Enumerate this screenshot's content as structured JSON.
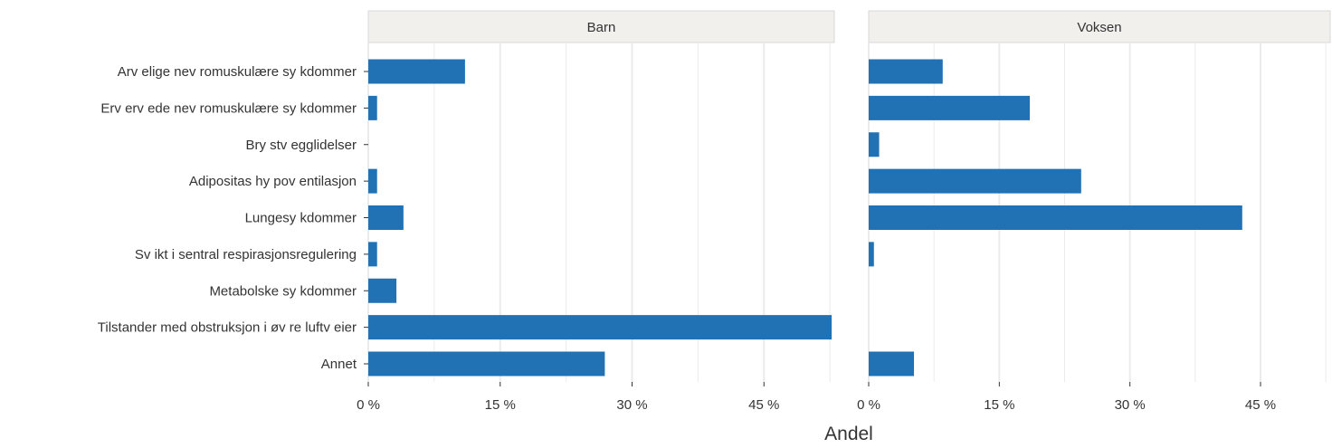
{
  "chart_data": {
    "type": "bar",
    "orientation": "horizontal",
    "facets": [
      "Barn",
      "Voksen"
    ],
    "categories": [
      "Arv elige nev romuskulære sy kdommer",
      "Erv erv ede nev romuskulære sy kdommer",
      "Bry stv egglidelser",
      "Adipositas hy pov entilasjon",
      "Lungesy kdommer",
      "Sv ikt i sentral respirasjonsregulering",
      "Metabolske sy kdommer",
      "Tilstander med obstruksjon i øv re luftv eier",
      "Annet"
    ],
    "series": [
      {
        "values": [
          11.0,
          1.0,
          0.0,
          1.0,
          4.0,
          1.0,
          3.2,
          52.7,
          26.9
        ]
      },
      {
        "values": [
          8.5,
          18.5,
          1.2,
          24.4,
          42.9,
          0.6,
          0.0,
          0.0,
          5.2
        ]
      }
    ],
    "xlabel": "Andel",
    "ylabel": "",
    "xlim": [
      0,
      53
    ],
    "xticks": [
      0,
      15,
      30,
      45
    ],
    "xtick_labels": [
      "0 %",
      "15 %",
      "30 %",
      "45 %"
    ],
    "grid": true,
    "colors": {
      "bar": "#2171b5",
      "strip": "#f1f0ed",
      "grid": "#ebebeb"
    }
  }
}
